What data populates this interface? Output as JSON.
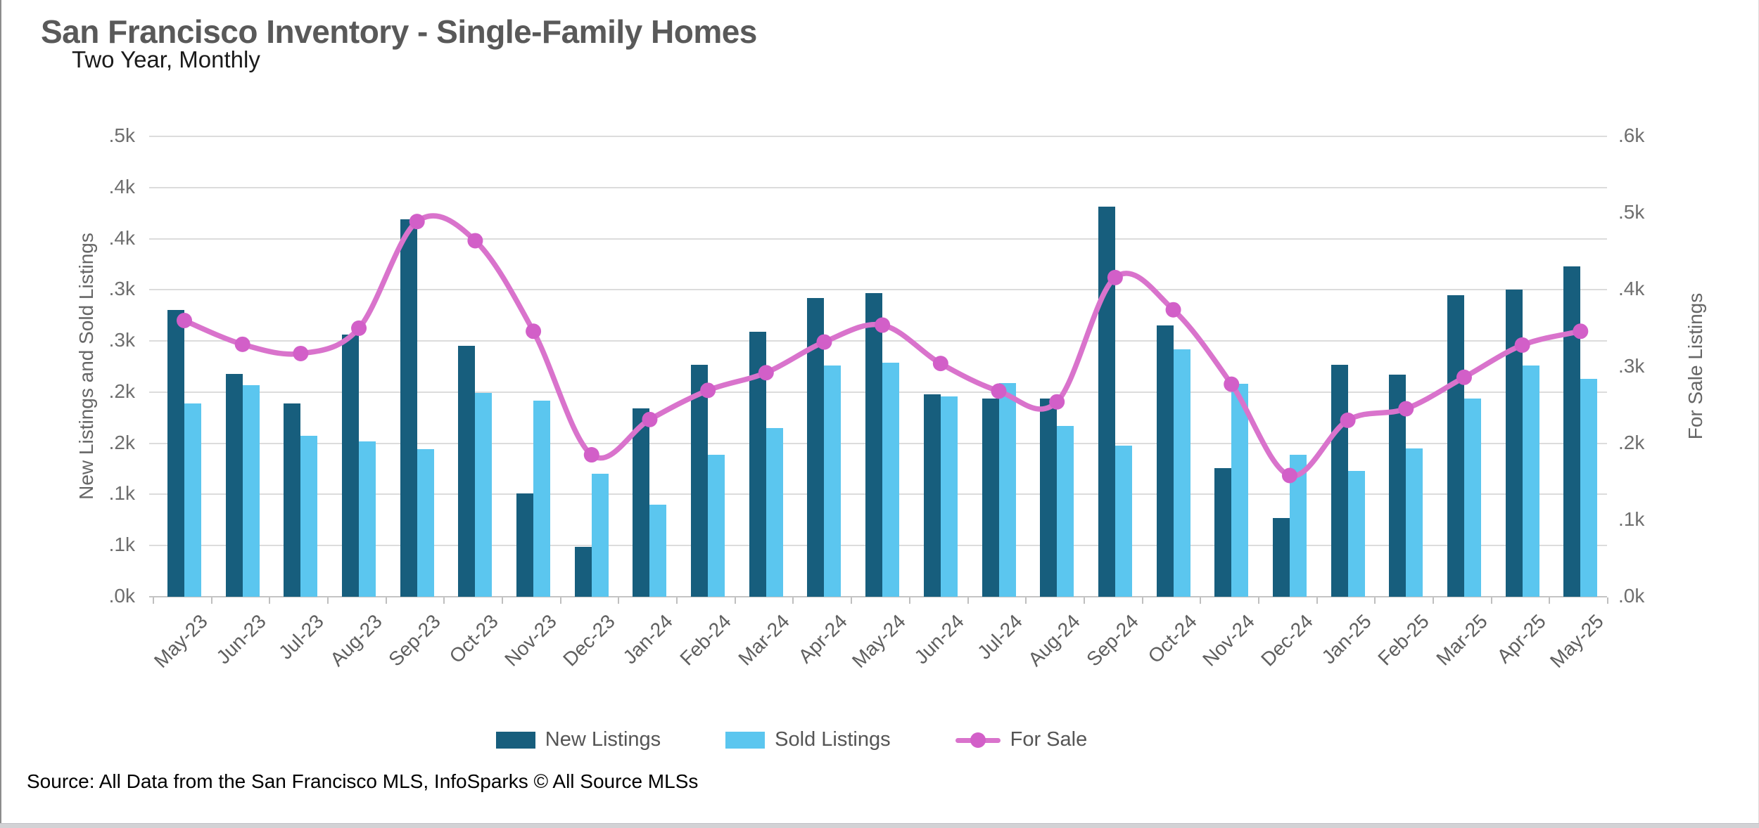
{
  "header": {
    "title": "San Francisco Inventory - Single-Family Homes",
    "subtitle": "Two Year, Monthly"
  },
  "source_line": "Source: All Data from the San Francisco MLS, InfoSparks © All Source MLSs",
  "colors": {
    "new_listings_bar": "#175e7d",
    "sold_listings_bar": "#5bc6ef",
    "for_sale_line": "#d973cc",
    "for_sale_dot": "#d25fc8",
    "gridline": "#dcdcdc",
    "axis_text": "#6e6e6e"
  },
  "legend": {
    "items": [
      {
        "label": "New Listings",
        "marker": "bar-swatch"
      },
      {
        "label": "Sold Listings",
        "marker": "bar-swatch"
      },
      {
        "label": "For Sale",
        "marker": "line-with-dot"
      }
    ]
  },
  "chart_data": {
    "type": "bar",
    "subtype": "grouped bars + smoothed line overlay (dual axis)",
    "title": "San Francisco Inventory - Single-Family Homes",
    "subtitle": "Two Year, Monthly",
    "categories": [
      "May-23",
      "Jun-23",
      "Jul-23",
      "Aug-23",
      "Sep-23",
      "Oct-23",
      "Nov-23",
      "Dec-23",
      "Jan-24",
      "Feb-24",
      "Mar-24",
      "Apr-24",
      "May-24",
      "Jun-24",
      "Jul-24",
      "Aug-24",
      "Sep-24",
      "Oct-24",
      "Nov-24",
      "Dec-24",
      "Jan-25",
      "Feb-25",
      "Mar-25",
      "Apr-25",
      "May-25"
    ],
    "series": [
      {
        "name": "New Listings",
        "type": "bar",
        "axis": "left",
        "values": [
          280,
          218,
          189,
          256,
          369,
          245,
          101,
          49,
          184,
          227,
          259,
          292,
          297,
          198,
          194,
          194,
          381,
          265,
          126,
          77,
          227,
          217,
          295,
          300,
          323
        ]
      },
      {
        "name": "Sold Listings",
        "type": "bar",
        "axis": "left",
        "values": [
          189,
          207,
          157,
          152,
          144,
          199,
          192,
          120,
          90,
          139,
          165,
          226,
          229,
          196,
          209,
          167,
          148,
          242,
          208,
          139,
          123,
          145,
          194,
          226,
          213
        ]
      },
      {
        "name": "For Sale",
        "type": "line",
        "axis": "right",
        "values": [
          360,
          329,
          317,
          350,
          489,
          464,
          346,
          185,
          231,
          269,
          292,
          332,
          354,
          304,
          268,
          254,
          416,
          374,
          277,
          158,
          230,
          245,
          286,
          328,
          346
        ]
      }
    ],
    "left_axis": {
      "label": "New Listings and Sold Listings",
      "min": 0,
      "max": 450,
      "step": 50,
      "tick_labels_top_to_bottom": [
        ".5k",
        ".4k",
        ".4k",
        ".3k",
        ".3k",
        ".2k",
        ".2k",
        ".1k",
        ".1k",
        ".0k"
      ]
    },
    "right_axis": {
      "label": "For Sale Listings",
      "min": 0,
      "max": 600,
      "step": 100,
      "tick_labels_top_to_bottom": [
        ".6k",
        ".5k",
        ".4k",
        ".3k",
        ".2k",
        ".1k",
        ".0k"
      ]
    },
    "grid": true,
    "legend_position": "bottom",
    "units_note": "values are listing counts; axis labels abbreviate thousands (k)"
  }
}
